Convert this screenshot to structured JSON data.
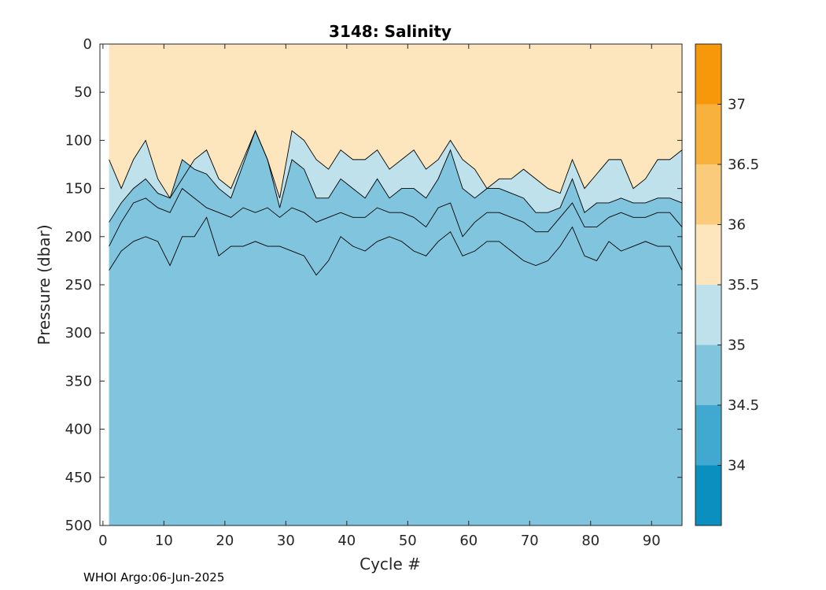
{
  "chart_data": {
    "type": "heatmap",
    "title": "3148:  Salinity",
    "xlabel": "Cycle #",
    "ylabel": "Pressure (dbar)",
    "xlim": [
      -0.5,
      95
    ],
    "ylim": [
      500,
      0
    ],
    "xticks": [
      0,
      10,
      20,
      30,
      40,
      50,
      60,
      70,
      80,
      90
    ],
    "yticks": [
      0,
      50,
      100,
      150,
      200,
      250,
      300,
      350,
      400,
      450,
      500
    ],
    "colorbar": {
      "levels": [
        33.5,
        34,
        34.5,
        35,
        35.5,
        36,
        36.5,
        37,
        37.5
      ],
      "ticks": [
        34,
        34.5,
        35,
        35.5,
        36,
        36.5,
        37
      ],
      "colors": [
        "#0a8fbf",
        "#41a9d0",
        "#80c4de",
        "#bfe1ec",
        "#fde6bd",
        "#fbcb7c",
        "#f9b13e",
        "#f7980a"
      ]
    },
    "cycle_range": [
      1,
      95
    ],
    "contour_depths": {
      "cycles": [
        1,
        3,
        5,
        7,
        9,
        11,
        13,
        15,
        17,
        19,
        21,
        23,
        25,
        27,
        29,
        31,
        33,
        35,
        37,
        39,
        41,
        43,
        45,
        47,
        49,
        51,
        53,
        55,
        57,
        59,
        61,
        63,
        65,
        67,
        69,
        71,
        73,
        75,
        77,
        79,
        81,
        83,
        85,
        87,
        89,
        91,
        93,
        95
      ],
      "35.5": [
        120,
        150,
        120,
        100,
        140,
        160,
        140,
        120,
        110,
        140,
        150,
        120,
        90,
        120,
        160,
        90,
        100,
        120,
        130,
        110,
        120,
        120,
        110,
        130,
        120,
        110,
        130,
        120,
        100,
        120,
        130,
        150,
        140,
        140,
        130,
        140,
        150,
        155,
        120,
        150,
        135,
        120,
        120,
        150,
        140,
        120,
        120,
        110
      ],
      "35.0": [
        185,
        165,
        150,
        140,
        155,
        160,
        120,
        130,
        135,
        150,
        160,
        125,
        90,
        120,
        170,
        120,
        130,
        160,
        160,
        140,
        150,
        160,
        140,
        160,
        150,
        150,
        160,
        140,
        110,
        150,
        160,
        150,
        150,
        155,
        160,
        175,
        175,
        170,
        140,
        175,
        165,
        165,
        160,
        165,
        165,
        160,
        160,
        165
      ],
      "34.5": [
        210,
        185,
        165,
        160,
        170,
        175,
        150,
        160,
        170,
        175,
        180,
        170,
        175,
        170,
        180,
        170,
        175,
        185,
        180,
        175,
        180,
        180,
        170,
        175,
        175,
        180,
        190,
        170,
        165,
        200,
        185,
        175,
        175,
        180,
        185,
        195,
        195,
        180,
        165,
        190,
        190,
        180,
        175,
        180,
        180,
        175,
        175,
        190
      ],
      "34.0": [
        235,
        215,
        205,
        200,
        205,
        230,
        200,
        200,
        180,
        220,
        210,
        210,
        205,
        210,
        210,
        215,
        220,
        240,
        225,
        200,
        210,
        215,
        205,
        200,
        205,
        215,
        220,
        205,
        195,
        220,
        215,
        205,
        205,
        215,
        225,
        230,
        225,
        210,
        190,
        220,
        225,
        205,
        215,
        210,
        205,
        210,
        210,
        235
      ]
    }
  },
  "footer": {
    "text": "WHOI Argo:06-Jun-2025"
  }
}
